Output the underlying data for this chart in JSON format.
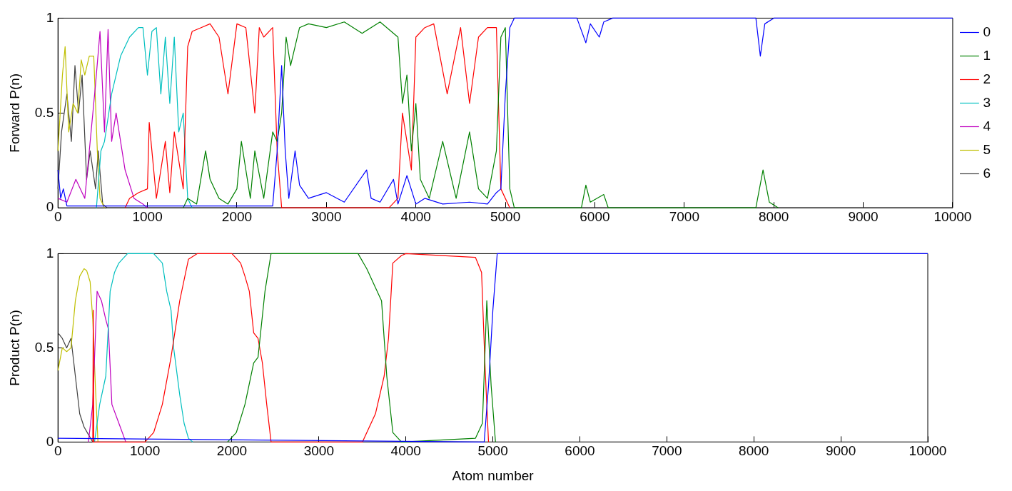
{
  "chart_data": [
    {
      "type": "line",
      "ylabel": "Forward P(n)",
      "xlim": [
        0,
        10000
      ],
      "xticks": [
        0,
        1000,
        2000,
        3000,
        4000,
        5000,
        6000,
        7000,
        8000,
        9000,
        10000
      ],
      "ylim": [
        0,
        1
      ],
      "yticks": [
        0,
        0.5,
        1
      ],
      "grid": false,
      "marker": "none",
      "legend": "right",
      "series": [
        {
          "name": "0",
          "color": "#0000ff",
          "x": [
            0,
            30,
            60,
            100,
            200,
            1000,
            2000,
            2400,
            2450,
            2500,
            2540,
            2580,
            2650,
            2700,
            2800,
            3000,
            3200,
            3450,
            3500,
            3600,
            3750,
            3800,
            3900,
            4000,
            4100,
            4300,
            4600,
            4800,
            4900,
            4950,
            5000,
            5050,
            5100,
            5200,
            5800,
            5900,
            5950,
            6050,
            6100,
            6200,
            7800,
            7850,
            7900,
            8000,
            10000
          ],
          "values": [
            0.2,
            0.05,
            0.1,
            0.01,
            0.01,
            0.01,
            0.01,
            0.01,
            0.3,
            0.75,
            0.3,
            0.05,
            0.3,
            0.12,
            0.05,
            0.08,
            0.03,
            0.2,
            0.05,
            0.03,
            0.15,
            0.02,
            0.17,
            0.02,
            0.05,
            0.02,
            0.03,
            0.02,
            0.08,
            0.1,
            0.6,
            0.95,
            1,
            1,
            1,
            0.87,
            0.97,
            0.9,
            0.98,
            1,
            1,
            0.8,
            0.97,
            1,
            1
          ]
        },
        {
          "name": "1",
          "color": "#008000",
          "x": [
            1400,
            1450,
            1550,
            1650,
            1700,
            1800,
            1900,
            2000,
            2050,
            2150,
            2200,
            2300,
            2400,
            2450,
            2500,
            2550,
            2600,
            2700,
            2800,
            3000,
            3200,
            3400,
            3600,
            3800,
            3850,
            3900,
            3950,
            4000,
            4050,
            4150,
            4300,
            4450,
            4600,
            4700,
            4800,
            4900,
            4950,
            5000,
            5050,
            5100,
            5850,
            5900,
            5950,
            6100,
            6150,
            7800,
            7880,
            7950,
            8050
          ],
          "values": [
            0,
            0.05,
            0.02,
            0.3,
            0.15,
            0.05,
            0.02,
            0.1,
            0.35,
            0.05,
            0.3,
            0.05,
            0.4,
            0.35,
            0.5,
            0.9,
            0.75,
            0.95,
            0.97,
            0.95,
            0.98,
            0.92,
            0.98,
            0.9,
            0.55,
            0.7,
            0.3,
            0.55,
            0.15,
            0.05,
            0.35,
            0.05,
            0.4,
            0.1,
            0.05,
            0.3,
            0.9,
            0.95,
            0.1,
            0,
            0,
            0.12,
            0.03,
            0.07,
            0,
            0,
            0.2,
            0.03,
            0
          ]
        },
        {
          "name": "2",
          "color": "#ff0000",
          "x": [
            750,
            800,
            900,
            1000,
            1020,
            1100,
            1200,
            1250,
            1300,
            1400,
            1450,
            1500,
            1600,
            1700,
            1800,
            1900,
            2000,
            2100,
            2200,
            2250,
            2300,
            2400,
            2450,
            2500,
            3700,
            3800,
            3850,
            3950,
            4000,
            4100,
            4200,
            4350,
            4500,
            4600,
            4700,
            4800,
            4900,
            4950,
            5050
          ],
          "values": [
            0,
            0.05,
            0.08,
            0.1,
            0.45,
            0.05,
            0.35,
            0.08,
            0.4,
            0.1,
            0.85,
            0.93,
            0.95,
            0.97,
            0.9,
            0.6,
            0.97,
            0.95,
            0.5,
            0.95,
            0.9,
            0.95,
            0.3,
            0,
            0,
            0.05,
            0.5,
            0.2,
            0.9,
            0.95,
            0.97,
            0.6,
            0.95,
            0.55,
            0.9,
            0.95,
            0.95,
            0.1,
            0
          ]
        },
        {
          "name": "3",
          "color": "#00bfbf",
          "x": [
            430,
            480,
            520,
            600,
            700,
            800,
            900,
            950,
            1000,
            1050,
            1100,
            1150,
            1200,
            1250,
            1300,
            1350,
            1400,
            1450,
            1500
          ],
          "values": [
            0,
            0.3,
            0.35,
            0.6,
            0.8,
            0.9,
            0.95,
            0.95,
            0.7,
            0.93,
            0.95,
            0.6,
            0.9,
            0.55,
            0.9,
            0.4,
            0.5,
            0.05,
            0
          ]
        },
        {
          "name": "4",
          "color": "#bf00bf",
          "x": [
            0,
            100,
            200,
            300,
            350,
            420,
            470,
            520,
            560,
            600,
            650,
            750,
            850,
            950,
            1000
          ],
          "values": [
            0.05,
            0.03,
            0.15,
            0.05,
            0.3,
            0.65,
            0.93,
            0.4,
            0.94,
            0.35,
            0.5,
            0.2,
            0.05,
            0.02,
            0
          ]
        },
        {
          "name": "5",
          "color": "#bfbf00",
          "x": [
            0,
            50,
            80,
            120,
            170,
            220,
            260,
            300,
            350,
            400,
            440,
            470,
            520
          ],
          "values": [
            0.3,
            0.7,
            0.85,
            0.4,
            0.55,
            0.5,
            0.78,
            0.7,
            0.8,
            0.8,
            0.3,
            0.05,
            0
          ]
        },
        {
          "name": "6",
          "color": "#404040",
          "x": [
            0,
            40,
            100,
            150,
            190,
            230,
            270,
            320,
            360,
            420,
            450,
            500,
            550,
            10000
          ],
          "values": [
            0.1,
            0.4,
            0.6,
            0.35,
            0.75,
            0.5,
            0.7,
            0.15,
            0.3,
            0.1,
            0.3,
            0.02,
            0,
            0
          ]
        }
      ]
    },
    {
      "type": "line",
      "ylabel": "Product P(n)",
      "xlabel": "Atom number",
      "xlim": [
        0,
        10000
      ],
      "xticks": [
        0,
        1000,
        2000,
        3000,
        4000,
        5000,
        6000,
        7000,
        8000,
        9000,
        10000
      ],
      "ylim": [
        0,
        1
      ],
      "yticks": [
        0,
        0.5,
        1
      ],
      "grid": false,
      "marker": "none",
      "legend": false,
      "series": [
        {
          "color": "#0000ff",
          "x": [
            0,
            4900,
            4950,
            5000,
            5050,
            10000
          ],
          "values": [
            0.02,
            0,
            0.3,
            0.7,
            1,
            1
          ]
        },
        {
          "color": "#008000",
          "x": [
            1950,
            2050,
            2150,
            2250,
            2300,
            2380,
            2450,
            3450,
            3550,
            3650,
            3720,
            3780,
            3850,
            3950,
            4800,
            4880,
            4930,
            4980,
            5030
          ],
          "values": [
            0,
            0.05,
            0.2,
            0.42,
            0.45,
            0.8,
            1,
            1,
            0.92,
            0.82,
            0.75,
            0.35,
            0.05,
            0,
            0.02,
            0.1,
            0.75,
            0.3,
            0
          ]
        },
        {
          "color": "#ff0000",
          "x": [
            400,
            406,
            412,
            1000,
            1100,
            1200,
            1300,
            1400,
            1500,
            1600,
            2000,
            2100,
            2150,
            2200,
            2250,
            2300,
            2350,
            2400,
            2450,
            3500,
            3650,
            3750,
            3800,
            3850,
            3950,
            4000,
            4800,
            4870,
            4910,
            4950
          ],
          "values": [
            0,
            0.7,
            0,
            0,
            0.05,
            0.2,
            0.45,
            0.75,
            0.97,
            1,
            1,
            0.95,
            0.88,
            0.8,
            0.58,
            0.55,
            0.42,
            0.2,
            0,
            0,
            0.15,
            0.35,
            0.55,
            0.95,
            0.99,
            1,
            0.98,
            0.9,
            0.4,
            0
          ]
        },
        {
          "color": "#00bfbf",
          "x": [
            420,
            480,
            550,
            600,
            650,
            700,
            800,
            900,
            1100,
            1200,
            1250,
            1300,
            1330,
            1400,
            1450,
            1500,
            1550
          ],
          "values": [
            0,
            0.2,
            0.35,
            0.8,
            0.9,
            0.95,
            1,
            1,
            1,
            0.95,
            0.8,
            0.7,
            0.5,
            0.25,
            0.1,
            0.02,
            0
          ]
        },
        {
          "color": "#bf00bf",
          "x": [
            350,
            400,
            450,
            500,
            550,
            580,
            620,
            700,
            780
          ],
          "values": [
            0,
            0.2,
            0.8,
            0.75,
            0.65,
            0.6,
            0.2,
            0.1,
            0
          ]
        },
        {
          "color": "#bfbf00",
          "x": [
            0,
            50,
            100,
            150,
            200,
            250,
            300,
            330,
            370,
            400,
            430,
            460
          ],
          "values": [
            0.38,
            0.5,
            0.48,
            0.5,
            0.75,
            0.88,
            0.92,
            0.91,
            0.85,
            0.65,
            0.3,
            0
          ]
        },
        {
          "color": "#404040",
          "x": [
            0,
            50,
            100,
            150,
            200,
            250,
            300,
            350,
            400,
            10000
          ],
          "values": [
            0.58,
            0.55,
            0.5,
            0.55,
            0.35,
            0.15,
            0.08,
            0.04,
            0,
            0
          ]
        }
      ]
    }
  ]
}
